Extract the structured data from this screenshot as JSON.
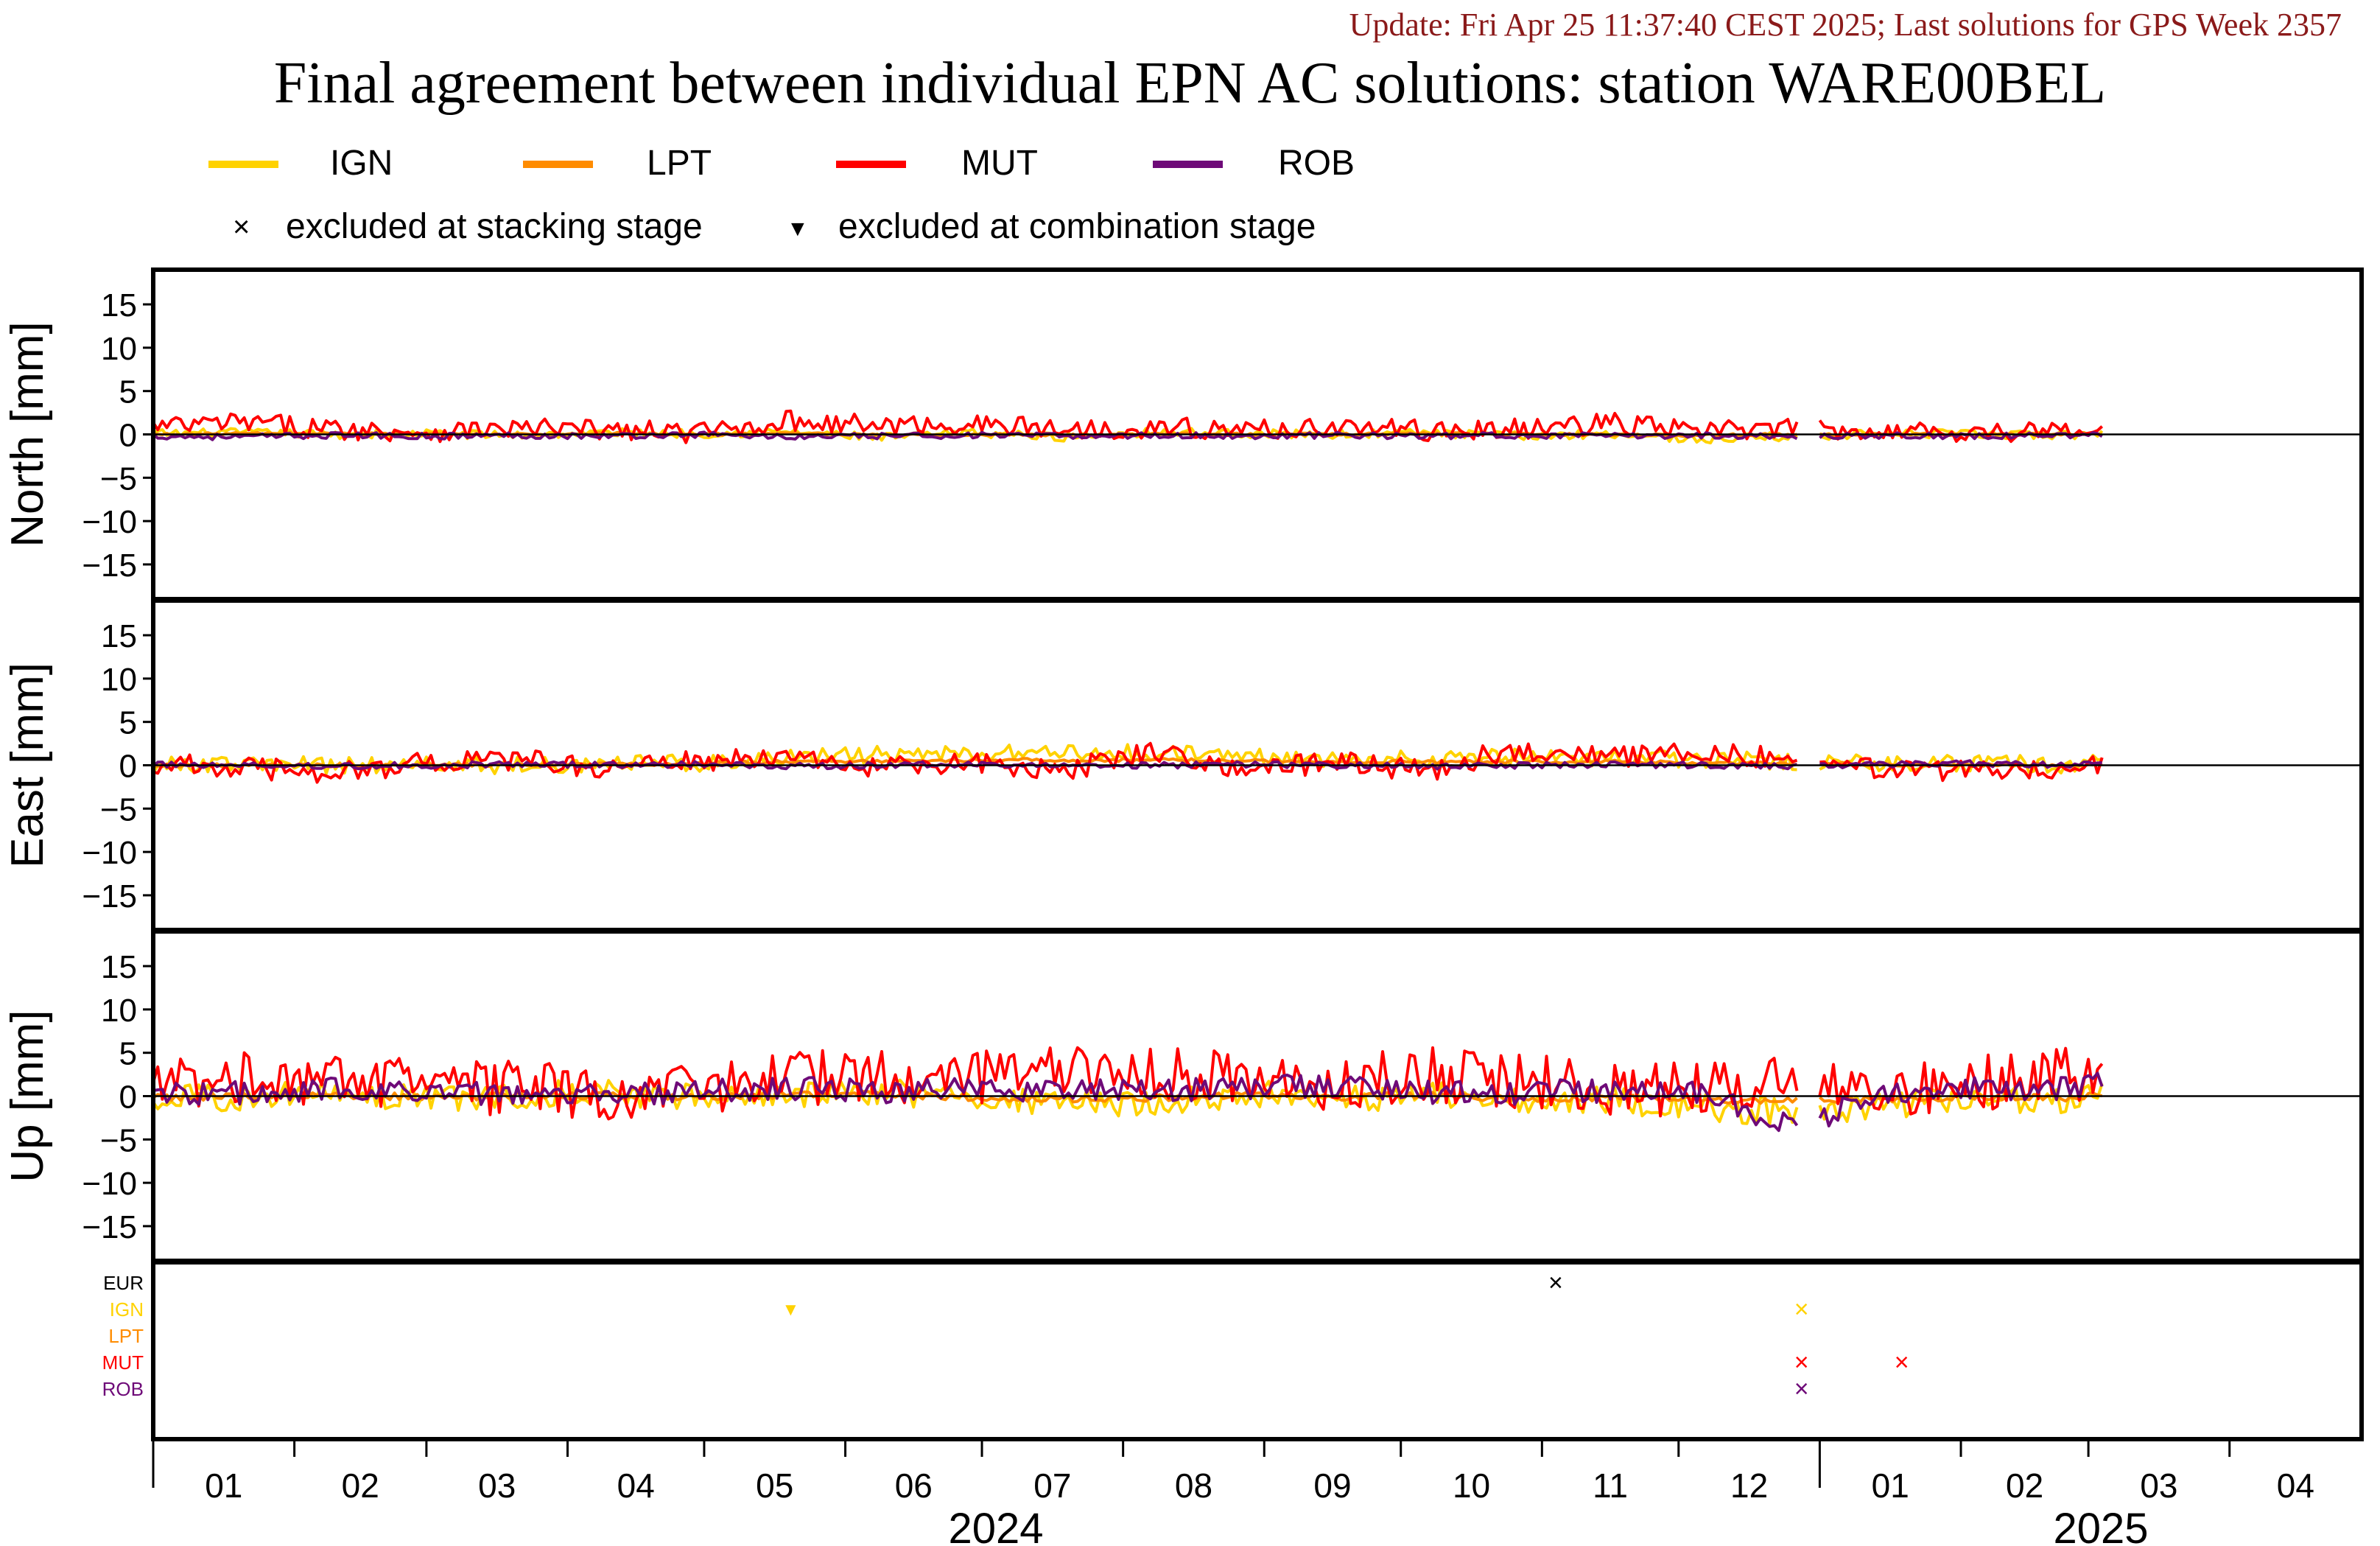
{
  "header": {
    "update": "Update: Fri Apr 25 11:37:40 CEST 2025; Last solutions for GPS Week 2357",
    "title": "Final agreement between individual EPN AC solutions: station WARE00BEL"
  },
  "colors": {
    "update_text": "#8b1a1a",
    "IGN": "#ffd200",
    "LPT": "#ff8c00",
    "MUT": "#ff0000",
    "ROB": "#6e0a78",
    "EUR": "#000000",
    "zero_line": "#000000",
    "frame": "#000000"
  },
  "legend": {
    "series": [
      {
        "name": "IGN",
        "color": "#ffd200"
      },
      {
        "name": "LPT",
        "color": "#ff8c00"
      },
      {
        "name": "MUT",
        "color": "#ff0000"
      },
      {
        "name": "ROB",
        "color": "#6e0a78"
      }
    ],
    "stacking": {
      "symbol": "×",
      "label": "excluded at stacking stage"
    },
    "combination": {
      "symbol": "▼",
      "label": "excluded at combination stage"
    }
  },
  "chart_data": [
    {
      "type": "line",
      "ylabel": "North [mm]",
      "ylim": [
        -19,
        19
      ],
      "yticks": [
        15,
        10,
        5,
        0,
        -5,
        -10,
        -15
      ],
      "x": [
        "2024-01-01",
        "2024-01-21",
        "2024-02-10",
        "2024-03-01",
        "2024-03-21",
        "2024-04-10",
        "2024-04-30",
        "2024-05-20",
        "2024-06-09",
        "2024-06-29",
        "2024-07-19",
        "2024-08-08",
        "2024-08-28",
        "2024-09-17",
        "2024-10-07",
        "2024-10-27",
        "2024-11-16",
        "2024-12-06",
        "2024-12-26",
        "2025-01-15",
        "2025-02-04",
        "2025-02-24",
        "2025-03-04"
      ],
      "series": [
        {
          "name": "IGN",
          "values": [
            0.1,
            0.2,
            0.0,
            0.1,
            -0.1,
            0.2,
            0.1,
            0.3,
            -0.4,
            0.2,
            -0.3,
            0.3,
            0.1,
            0.0,
            0.2,
            -0.2,
            0.1,
            -0.6,
            -0.2,
            0.1,
            0.0,
            -0.1,
            0.2
          ]
        },
        {
          "name": "LPT",
          "values": [
            0.0,
            0.1,
            0.1,
            0.0,
            0.0,
            0.1,
            0.0,
            0.1,
            -0.1,
            0.0,
            -0.1,
            0.1,
            0.0,
            0.0,
            0.1,
            0.0,
            0.0,
            -0.1,
            0.0,
            0.0,
            0.0,
            0.0,
            0.1
          ]
        },
        {
          "name": "MUT",
          "values": [
            0.8,
            1.4,
            0.6,
            0.3,
            0.7,
            0.5,
            0.2,
            1.6,
            1.0,
            1.2,
            0.6,
            0.8,
            0.5,
            0.9,
            0.4,
            0.6,
            1.3,
            0.4,
            0.7,
            0.5,
            0.3,
            0.4,
            0.5
          ]
        },
        {
          "name": "ROB",
          "values": [
            -0.2,
            -0.3,
            -0.1,
            -0.2,
            -0.1,
            -0.2,
            0.0,
            -0.3,
            -0.2,
            -0.1,
            -0.2,
            -0.1,
            -0.2,
            -0.1,
            -0.2,
            -0.1,
            -0.2,
            -0.1,
            -0.2,
            -0.1,
            -0.2,
            -0.1,
            0.0
          ]
        }
      ]
    },
    {
      "type": "line",
      "ylabel": "East [mm]",
      "ylim": [
        -19,
        19
      ],
      "yticks": [
        15,
        10,
        5,
        0,
        -5,
        -10,
        -15
      ],
      "x": [
        "2024-01-01",
        "2024-01-21",
        "2024-02-10",
        "2024-03-01",
        "2024-03-21",
        "2024-04-10",
        "2024-04-30",
        "2024-05-20",
        "2024-06-09",
        "2024-06-29",
        "2024-07-19",
        "2024-08-08",
        "2024-08-28",
        "2024-09-17",
        "2024-10-07",
        "2024-10-27",
        "2024-11-16",
        "2024-12-06",
        "2024-12-26",
        "2025-01-15",
        "2025-02-04",
        "2025-02-24",
        "2025-03-04"
      ],
      "series": [
        {
          "name": "IGN",
          "values": [
            0.0,
            0.1,
            0.0,
            0.1,
            0.0,
            0.2,
            0.3,
            1.0,
            1.2,
            1.3,
            1.5,
            1.4,
            1.0,
            0.8,
            0.7,
            0.9,
            0.8,
            0.6,
            0.5,
            0.3,
            0.2,
            0.1,
            0.2
          ]
        },
        {
          "name": "LPT",
          "values": [
            0.0,
            0.0,
            0.0,
            0.1,
            0.0,
            0.1,
            0.2,
            0.4,
            0.5,
            0.6,
            0.6,
            0.6,
            0.5,
            0.4,
            0.4,
            0.4,
            0.4,
            0.3,
            0.2,
            0.1,
            0.1,
            0.0,
            0.1
          ]
        },
        {
          "name": "MUT",
          "values": [
            0.2,
            -0.4,
            -0.8,
            0.3,
            0.6,
            -0.3,
            0.5,
            0.8,
            -0.4,
            0.3,
            -0.6,
            1.8,
            -0.5,
            0.4,
            -0.6,
            2.0,
            0.8,
            1.5,
            0.6,
            -0.7,
            -0.5,
            -0.2,
            0.3
          ]
        },
        {
          "name": "ROB",
          "values": [
            0.1,
            0.0,
            -0.1,
            0.0,
            0.1,
            0.0,
            0.1,
            -0.1,
            0.0,
            0.1,
            -0.1,
            0.0,
            0.1,
            0.0,
            -0.1,
            0.0,
            0.1,
            0.0,
            -0.1,
            0.1,
            0.2,
            0.0,
            0.5
          ]
        }
      ]
    },
    {
      "type": "line",
      "ylabel": "Up [mm]",
      "ylim": [
        -19,
        19
      ],
      "yticks": [
        15,
        10,
        5,
        0,
        -5,
        -10,
        -15
      ],
      "x": [
        "2024-01-01",
        "2024-01-21",
        "2024-02-10",
        "2024-03-01",
        "2024-03-21",
        "2024-04-10",
        "2024-04-30",
        "2024-05-20",
        "2024-06-09",
        "2024-06-29",
        "2024-07-19",
        "2024-08-08",
        "2024-08-28",
        "2024-09-17",
        "2024-10-07",
        "2024-10-27",
        "2024-11-16",
        "2024-12-06",
        "2024-12-26",
        "2025-01-15",
        "2025-02-04",
        "2025-02-24",
        "2025-03-04"
      ],
      "series": [
        {
          "name": "IGN",
          "values": [
            -0.5,
            0.0,
            0.3,
            -0.2,
            0.1,
            0.4,
            -0.3,
            0.2,
            0.5,
            -0.5,
            -1.0,
            -0.6,
            0.3,
            -0.4,
            0.2,
            -0.8,
            -0.5,
            -1.2,
            -2.0,
            -1.0,
            -0.3,
            -0.5,
            0.5
          ]
        },
        {
          "name": "LPT",
          "values": [
            -0.2,
            0.0,
            0.1,
            -0.1,
            0.0,
            0.1,
            -0.1,
            0.1,
            0.2,
            -0.2,
            -0.3,
            -0.2,
            0.1,
            -0.1,
            0.1,
            -0.3,
            -0.2,
            -0.4,
            -0.6,
            -0.3,
            -0.1,
            -0.2,
            0.2
          ]
        },
        {
          "name": "MUT",
          "values": [
            1.5,
            2.5,
            2.0,
            1.2,
            0.8,
            0.5,
            0.2,
            1.8,
            2.5,
            2.2,
            3.5,
            3.0,
            2.0,
            1.5,
            2.5,
            1.8,
            1.0,
            0.8,
            2.5,
            0.5,
            1.5,
            2.5,
            2.0
          ]
        },
        {
          "name": "ROB",
          "values": [
            0.5,
            0.3,
            0.8,
            0.6,
            0.2,
            0.4,
            0.5,
            1.0,
            0.5,
            0.8,
            0.6,
            0.4,
            1.0,
            1.2,
            0.5,
            0.4,
            0.6,
            0.2,
            -3.5,
            0.0,
            0.8,
            1.0,
            1.8
          ]
        }
      ]
    },
    {
      "type": "scatter",
      "ylabel": "",
      "categories": [
        "EUR",
        "IGN",
        "LPT",
        "MUT",
        "ROB"
      ],
      "points": [
        {
          "series": "IGN",
          "date": "2024-05-20",
          "marker": "▼"
        },
        {
          "series": "EUR",
          "date": "2024-11-04",
          "marker": "×"
        },
        {
          "series": "IGN",
          "date": "2024-12-28",
          "marker": "×"
        },
        {
          "series": "MUT",
          "date": "2024-12-28",
          "marker": "×"
        },
        {
          "series": "ROB",
          "date": "2024-12-28",
          "marker": "×"
        },
        {
          "series": "MUT",
          "date": "2025-01-19",
          "marker": "×"
        }
      ]
    }
  ],
  "x_axis": {
    "months": [
      "01",
      "02",
      "03",
      "04",
      "05",
      "06",
      "07",
      "08",
      "09",
      "10",
      "11",
      "12",
      "01",
      "02",
      "03",
      "04"
    ],
    "years": [
      "2024",
      "2025"
    ],
    "range": [
      "2024-01-01",
      "2025-04-30"
    ]
  }
}
